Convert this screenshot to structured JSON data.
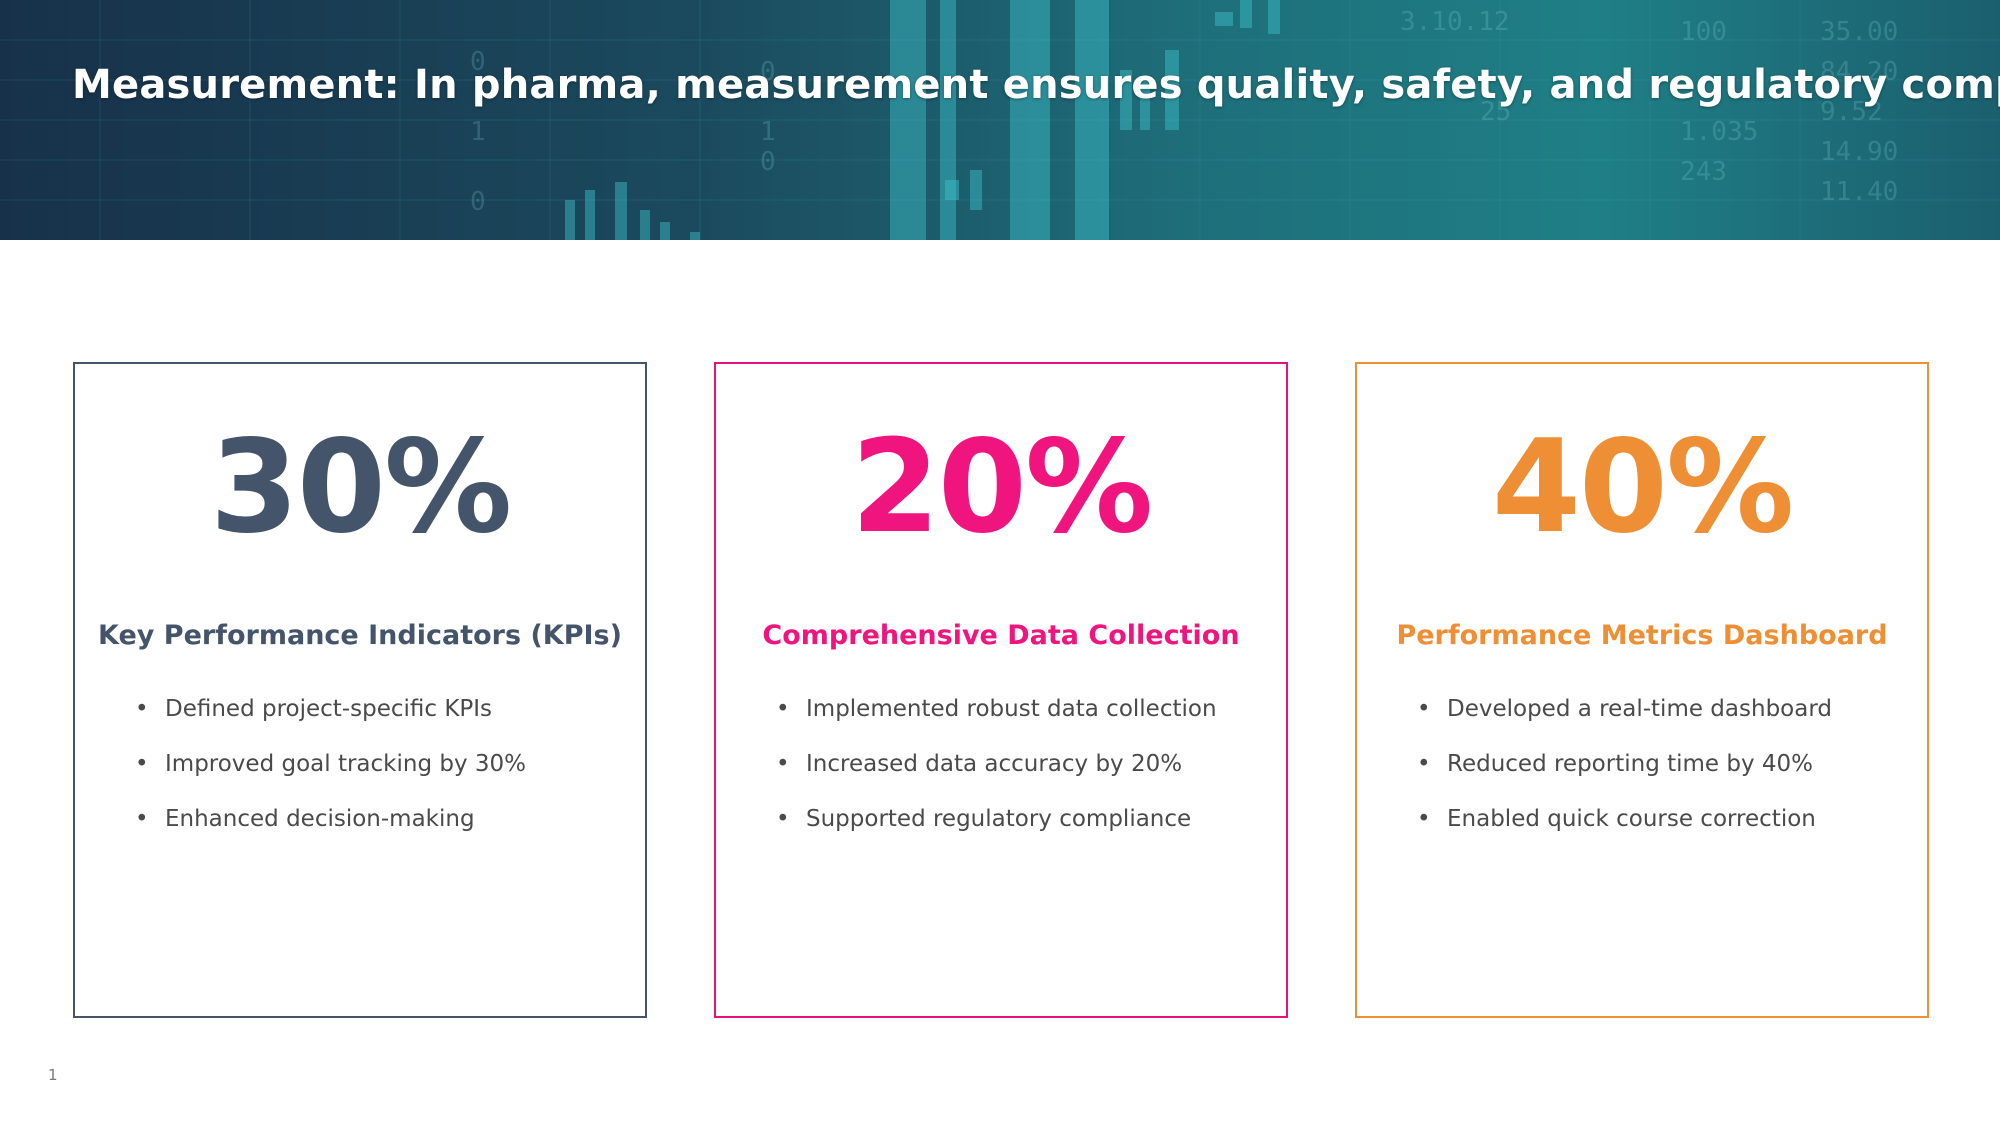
{
  "title": "Measurement: In pharma, measurement ensures quality, safety, and regulatory compliance",
  "colors": {
    "card1": "#44546a",
    "card2": "#f0147f",
    "card3": "#ef8f35",
    "banner": "#1e6f7a"
  },
  "cards": [
    {
      "stat": "30%",
      "heading": "Key Performance Indicators (KPIs)",
      "bullets": [
        "Defined project-specific KPIs",
        "Improved goal tracking by 30%",
        "Enhanced decision-making"
      ]
    },
    {
      "stat": "20%",
      "heading": "Comprehensive Data Collection",
      "bullets": [
        "Implemented robust data collection",
        "Increased data accuracy by 20%",
        "Supported regulatory compliance"
      ]
    },
    {
      "stat": "40%",
      "heading": "Performance Metrics Dashboard",
      "bullets": [
        "Developed a real-time dashboard",
        "Reduced reporting time by 40%",
        "Enabled quick course correction"
      ]
    }
  ],
  "page_number": "1"
}
